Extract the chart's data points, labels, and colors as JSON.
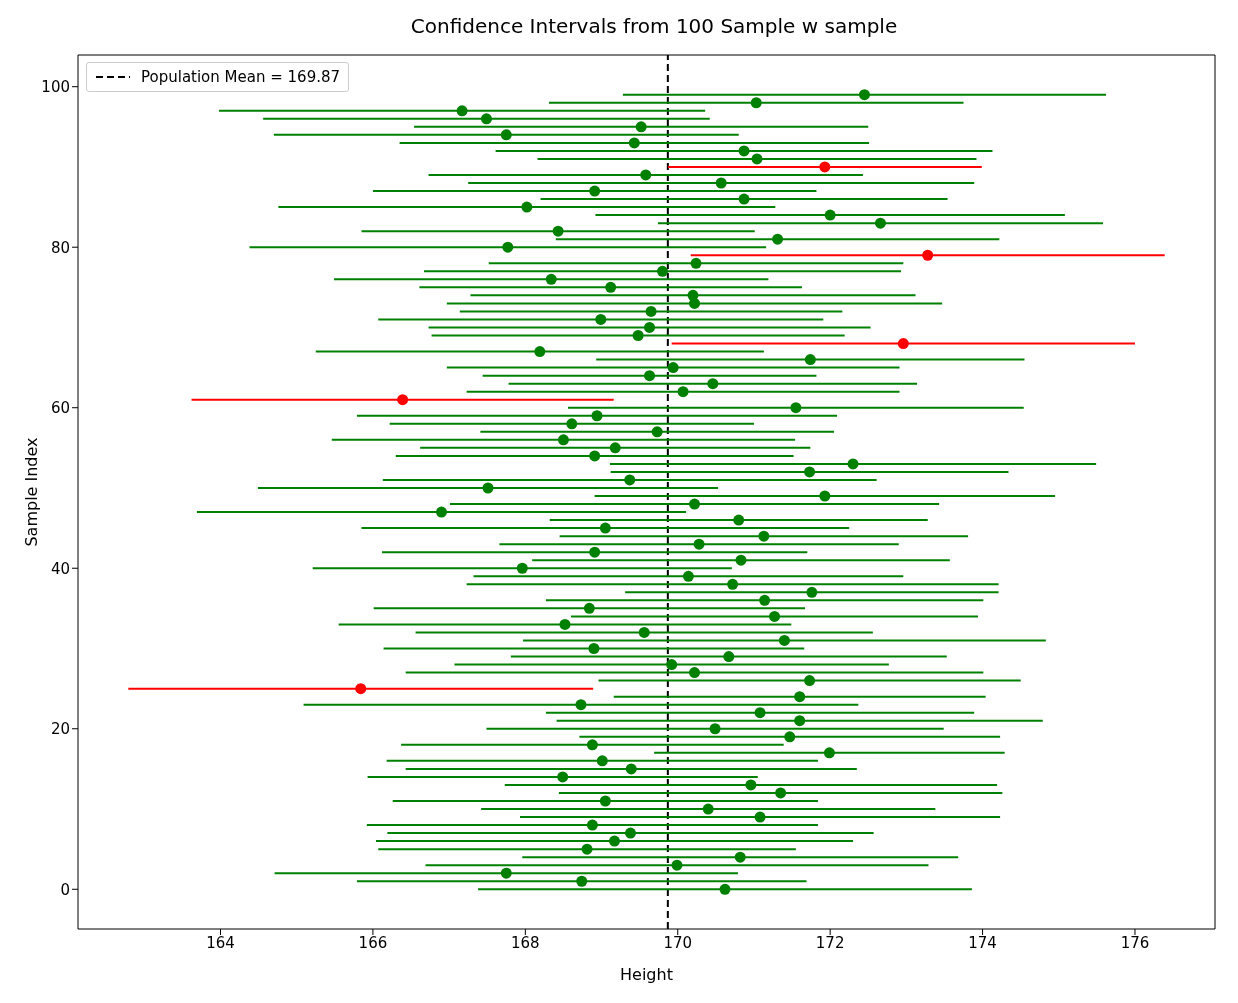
{
  "chart_data": {
    "type": "scatter",
    "title": "Confidence Intervals from 100 Sample w sample",
    "xlabel": "Height",
    "ylabel": "Sample Index",
    "values": [
      0,
      1,
      2,
      3,
      4,
      5,
      6,
      7,
      8,
      9,
      10,
      11,
      12,
      13,
      14,
      15,
      16,
      17,
      18,
      19,
      20,
      21,
      22,
      23,
      24,
      25,
      26,
      27,
      28,
      29,
      30,
      31,
      32,
      33,
      34,
      35,
      36,
      37,
      38,
      39,
      40,
      41,
      42,
      43,
      44,
      45,
      46,
      47,
      48,
      49,
      50,
      51,
      52,
      53,
      54,
      55,
      56,
      57,
      58,
      59,
      60,
      61,
      62,
      63,
      64,
      65,
      66,
      67,
      68,
      69,
      70,
      71,
      72,
      73,
      74,
      75,
      76,
      77,
      78,
      79,
      80,
      81,
      82,
      83,
      84,
      85,
      86,
      87,
      88,
      89,
      90,
      91,
      92,
      93,
      94,
      95,
      96,
      97,
      98,
      99
    ],
    "x": [
      170.62,
      168.74,
      167.75,
      169.99,
      170.82,
      168.81,
      169.17,
      169.38,
      168.88,
      171.08,
      170.4,
      169.05,
      171.35,
      170.96,
      168.49,
      169.39,
      169.01,
      171.99,
      168.88,
      171.47,
      170.49,
      171.6,
      171.08,
      168.73,
      171.6,
      165.84,
      171.73,
      170.22,
      169.92,
      170.67,
      168.9,
      171.4,
      169.56,
      168.52,
      171.27,
      168.84,
      171.14,
      171.76,
      170.72,
      170.14,
      167.96,
      170.83,
      168.91,
      170.28,
      171.13,
      169.05,
      170.8,
      166.9,
      170.22,
      171.93,
      167.51,
      169.37,
      171.73,
      172.3,
      168.91,
      169.18,
      168.5,
      169.73,
      168.61,
      168.94,
      171.55,
      166.39,
      170.07,
      170.46,
      169.63,
      169.94,
      171.74,
      168.19,
      172.96,
      169.48,
      169.63,
      168.99,
      169.65,
      170.22,
      170.2,
      169.12,
      168.34,
      169.8,
      170.24,
      173.28,
      167.77,
      171.31,
      168.43,
      172.66,
      172.0,
      168.02,
      170.87,
      168.91,
      170.57,
      169.58,
      171.93,
      171.04,
      170.87,
      169.43,
      167.75,
      169.52,
      167.49,
      167.17,
      171.03,
      172.45
    ],
    "xerrors": [
      3.24,
      2.95,
      3.04,
      3.3,
      2.86,
      2.74,
      3.13,
      3.19,
      2.96,
      3.15,
      2.98,
      2.79,
      2.91,
      3.23,
      2.56,
      2.96,
      2.83,
      2.3,
      2.51,
      2.76,
      3.0,
      3.19,
      2.81,
      3.64,
      2.44,
      3.05,
      2.77,
      3.79,
      2.85,
      2.86,
      2.76,
      3.43,
      3.0,
      2.97,
      2.67,
      2.83,
      2.87,
      2.45,
      3.49,
      2.82,
      2.75,
      2.74,
      2.79,
      2.62,
      2.68,
      3.2,
      2.48,
      3.21,
      3.21,
      3.02,
      3.02,
      3.24,
      2.61,
      3.19,
      2.61,
      2.56,
      3.04,
      2.32,
      2.39,
      3.15,
      2.99,
      2.77,
      2.84,
      2.68,
      2.19,
      2.97,
      2.81,
      2.94,
      3.04,
      2.71,
      2.9,
      2.92,
      2.51,
      3.25,
      2.92,
      2.51,
      2.85,
      3.13,
      2.72,
      3.11,
      3.39,
      2.91,
      2.58,
      2.92,
      3.08,
      3.26,
      2.67,
      2.91,
      3.32,
      2.85,
      2.06,
      2.88,
      3.26,
      3.08,
      3.05,
      2.98,
      2.93,
      3.19,
      2.72,
      3.17
    ],
    "colors": [
      "#008000",
      "#008000",
      "#008000",
      "#008000",
      "#008000",
      "#008000",
      "#008000",
      "#008000",
      "#008000",
      "#008000",
      "#008000",
      "#008000",
      "#008000",
      "#008000",
      "#008000",
      "#008000",
      "#008000",
      "#008000",
      "#008000",
      "#008000",
      "#008000",
      "#008000",
      "#008000",
      "#008000",
      "#008000",
      "#ff0000",
      "#008000",
      "#008000",
      "#008000",
      "#008000",
      "#008000",
      "#008000",
      "#008000",
      "#008000",
      "#008000",
      "#008000",
      "#008000",
      "#008000",
      "#008000",
      "#008000",
      "#008000",
      "#008000",
      "#008000",
      "#008000",
      "#008000",
      "#008000",
      "#008000",
      "#008000",
      "#008000",
      "#008000",
      "#008000",
      "#008000",
      "#008000",
      "#008000",
      "#008000",
      "#008000",
      "#008000",
      "#008000",
      "#008000",
      "#008000",
      "#008000",
      "#ff0000",
      "#008000",
      "#008000",
      "#008000",
      "#008000",
      "#008000",
      "#008000",
      "#ff0000",
      "#008000",
      "#008000",
      "#008000",
      "#008000",
      "#008000",
      "#008000",
      "#008000",
      "#008000",
      "#008000",
      "#008000",
      "#ff0000",
      "#008000",
      "#008000",
      "#008000",
      "#008000",
      "#008000",
      "#008000",
      "#008000",
      "#008000",
      "#008000",
      "#008000",
      "#ff0000",
      "#008000",
      "#008000",
      "#008000",
      "#008000",
      "#008000",
      "#008000",
      "#008000",
      "#008000",
      "#008000"
    ],
    "xlim": [
      162.13,
      177.05
    ],
    "xticks": [
      164,
      166,
      168,
      170,
      172,
      174,
      176
    ],
    "ylim": [
      -4.95,
      103.95
    ],
    "yticks": [
      0,
      20,
      40,
      60,
      80,
      100
    ],
    "ref_lines": [
      {
        "axis": "x",
        "value": 169.87,
        "label": "Population Mean = 169.87",
        "color": "#000000",
        "line_style": "dashed"
      }
    ],
    "legend": "top left",
    "marker": "circle",
    "grid": false
  }
}
